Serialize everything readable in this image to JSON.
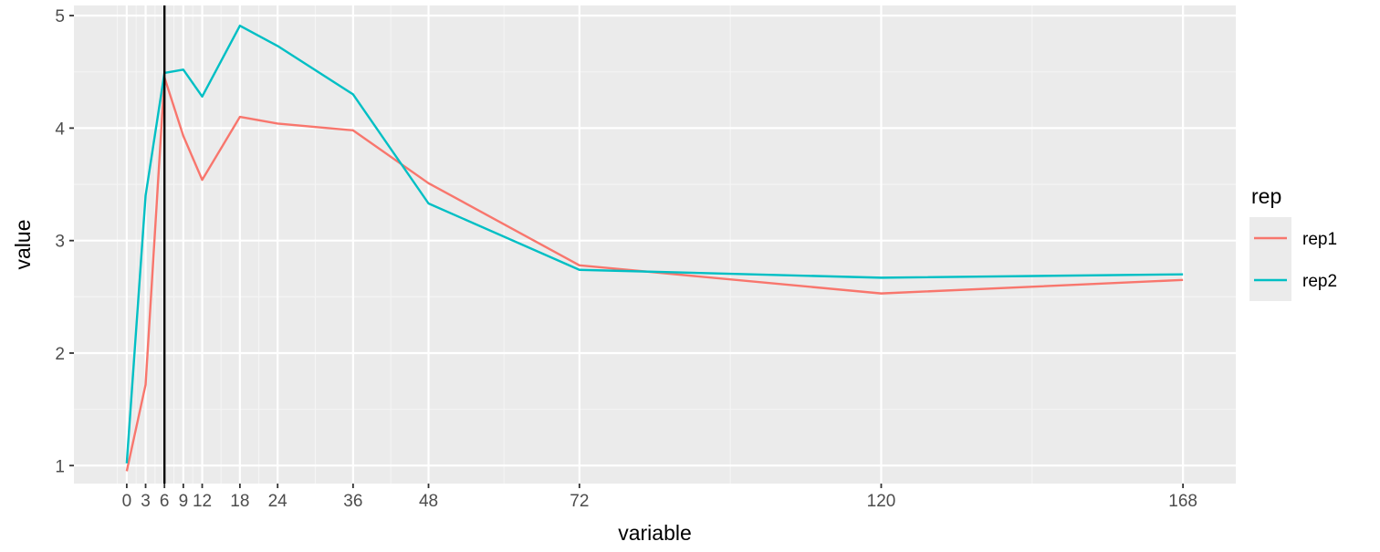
{
  "chart_data": {
    "type": "line",
    "title": "",
    "xlabel": "variable",
    "ylabel": "value",
    "x": [
      0,
      3,
      6,
      9,
      12,
      18,
      24,
      36,
      48,
      72,
      120,
      168
    ],
    "x_tick_labels": [
      "0",
      "3",
      "6",
      "9",
      "12",
      "18",
      "24",
      "36",
      "48",
      "72",
      "120",
      "168"
    ],
    "y_ticks": [
      1,
      2,
      3,
      4,
      5
    ],
    "y_tick_labels": [
      "1",
      "2",
      "3",
      "4",
      "5"
    ],
    "xlim": [
      -8.4,
      176.4
    ],
    "ylim": [
      0.84,
      5.09
    ],
    "grid": true,
    "vline": {
      "x": 6
    },
    "legend": {
      "title": "rep",
      "position": "right"
    },
    "series": [
      {
        "name": "rep1",
        "color": "#F8766D",
        "values": [
          0.95,
          1.72,
          4.45,
          3.93,
          3.54,
          4.1,
          4.04,
          3.98,
          3.51,
          2.78,
          2.53,
          2.65
        ]
      },
      {
        "name": "rep2",
        "color": "#00BFC4",
        "values": [
          1.02,
          3.4,
          4.49,
          4.52,
          4.28,
          4.91,
          4.73,
          4.3,
          3.33,
          2.74,
          2.67,
          2.7
        ]
      }
    ],
    "colors": {
      "panel_background": "#EBEBEB",
      "grid_major": "#FFFFFF",
      "grid_minor": "#F5F5F5",
      "text": "#4D4D4D",
      "vline": "#000000"
    }
  }
}
